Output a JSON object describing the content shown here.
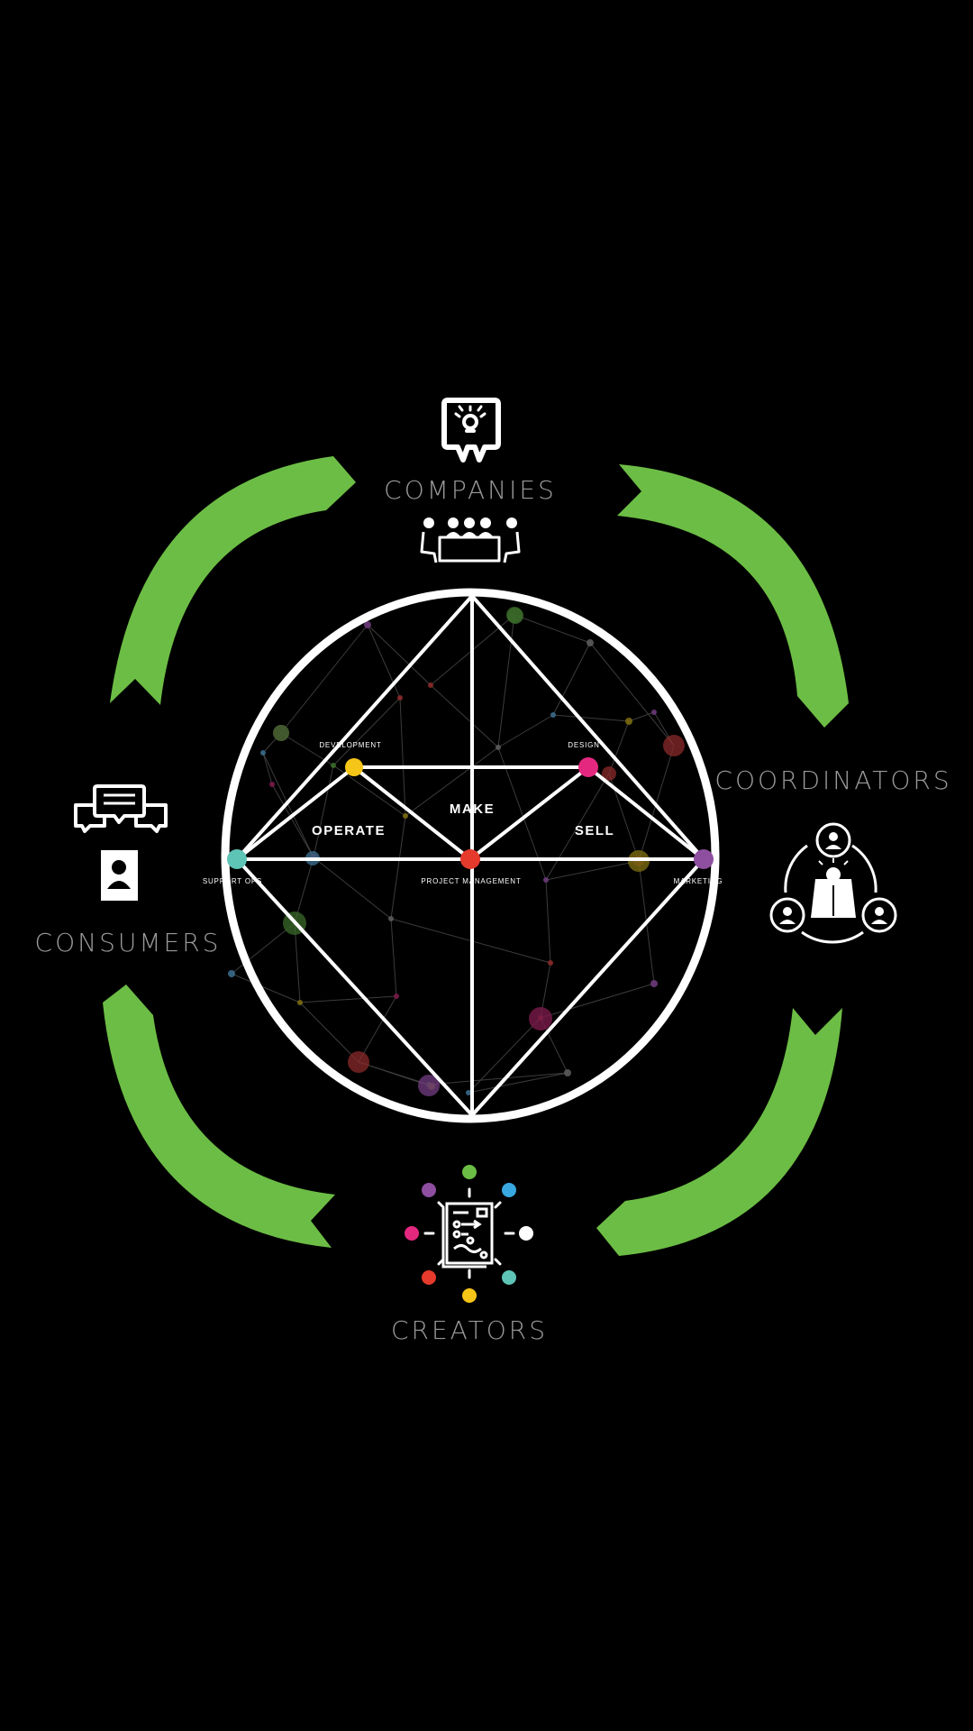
{
  "colors": {
    "background": "#000000",
    "arrow": "#6cbd45",
    "outline": "#ffffff",
    "label_gray": "#9a9a9a",
    "development": "#f5c518",
    "design": "#e5287f",
    "project_management": "#e53a2c",
    "support_ops": "#5ec4b6",
    "marketing": "#8e4fa0"
  },
  "groups": {
    "companies": {
      "label": "COMPANIES",
      "icons": [
        "idea-board-icon",
        "meeting-table-icon"
      ]
    },
    "coordinators": {
      "label": "COORDINATORS",
      "icons": [
        "team-idea-icon"
      ]
    },
    "consumers": {
      "label": "CONSUMERS",
      "icons": [
        "chat-bubbles-icon",
        "profile-card-icon"
      ]
    },
    "creators": {
      "label": "CREATORS",
      "icons": [
        "blueprint-icon"
      ]
    }
  },
  "diagram": {
    "sections": {
      "make": "MAKE",
      "operate": "OPERATE",
      "sell": "SELL"
    },
    "nodes": {
      "development": "DEVELOPMENT",
      "design": "DESIGN",
      "project_management": "PROJECT MANAGEMENT",
      "support_ops": "SUPPORT OPS",
      "marketing": "MARKETING"
    }
  }
}
